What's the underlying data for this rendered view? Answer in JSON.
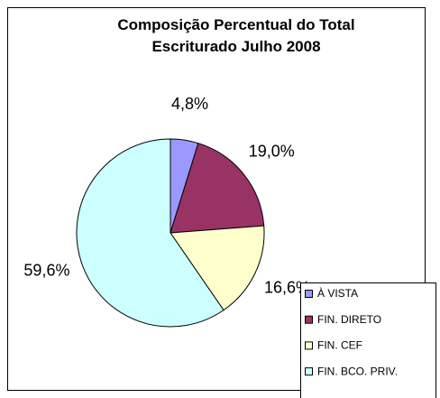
{
  "chart_data": {
    "type": "pie",
    "title": "Composição Percentual do Total Escriturado Julho 2008",
    "categories": [
      "À VISTA",
      "FIN. DIRETO",
      "FIN. CEF",
      "FIN. BCO. PRIV."
    ],
    "values": [
      4.8,
      19.0,
      16.6,
      59.6
    ],
    "value_labels": [
      "4,8%",
      "19,0%",
      "16,6%",
      "59,6%"
    ],
    "colors": [
      "#9999ff",
      "#993366",
      "#ffffcc",
      "#ccffff"
    ],
    "legend": "bottom-right"
  }
}
